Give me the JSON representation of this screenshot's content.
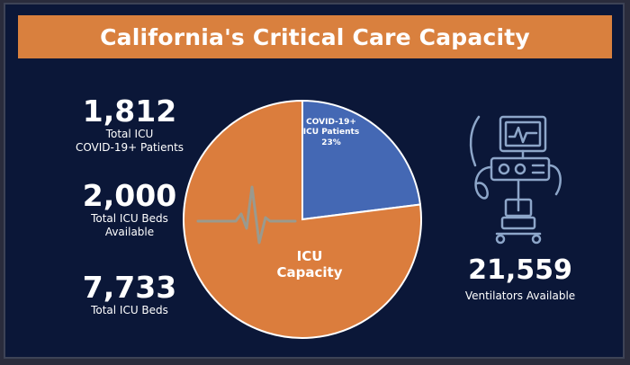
{
  "title": "California's Critical Care Capacity",
  "stats": [
    {
      "value": "1,812",
      "label_lines": [
        "Total ICU",
        "COVID-19+ Patients"
      ]
    },
    {
      "value": "2,000",
      "label_lines": [
        "Total ICU Beds",
        "Available"
      ]
    },
    {
      "value": "7,733",
      "label_lines": [
        "Total ICU Beds"
      ]
    }
  ],
  "ventilators": {
    "value": "21,559",
    "label": "Ventilators Available"
  },
  "chart_data": {
    "type": "pie",
    "title": "",
    "slices": [
      {
        "label_lines": [
          "COVID-19+",
          "ICU Patients"
        ],
        "value_text": "23%",
        "value": 23,
        "color": "#4468b4"
      },
      {
        "label_lines": [
          "ICU",
          "Capacity"
        ],
        "value_text": "",
        "value": 77,
        "color": "#db7d3d"
      }
    ],
    "legend": "none",
    "grid": false
  },
  "colors": {
    "background": "#0b1738",
    "accent": "#d9803e",
    "text": "#ffffff",
    "icon": "#8da6c9"
  },
  "icons": [
    "heartbeat-line-icon",
    "ventilator-icon"
  ]
}
